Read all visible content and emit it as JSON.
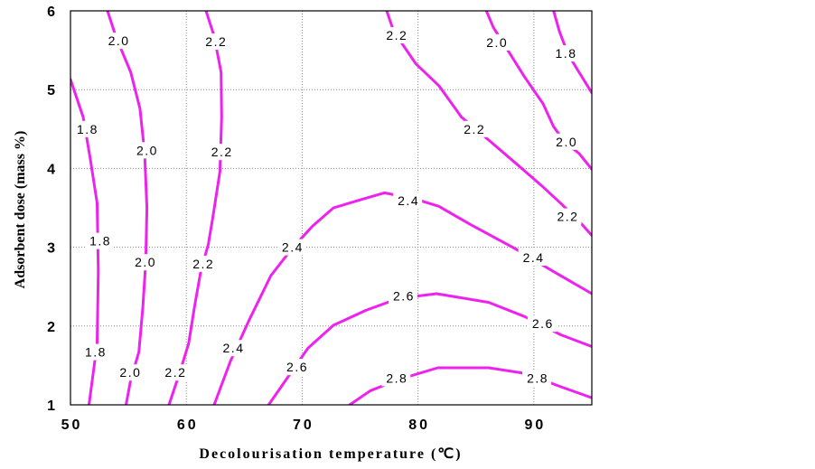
{
  "chart_data": {
    "type": "line",
    "xlabel": "Decolourisation temperature (℃)",
    "ylabel": "Adsorbent dose (mass %)",
    "xlim": [
      50,
      95
    ],
    "ylim": [
      1,
      6
    ],
    "xticks": [
      50,
      60,
      70,
      80,
      90
    ],
    "yticks": [
      1,
      2,
      3,
      4,
      5,
      6
    ],
    "grid": true,
    "line_color": "#ee22ee",
    "series": [
      {
        "level": "1.8",
        "x": [
          50.0,
          51.1,
          51.7,
          52.3,
          52.4,
          52.3,
          52.0,
          51.6
        ],
        "y": [
          5.13,
          4.65,
          4.13,
          3.56,
          2.7,
          1.78,
          1.44,
          1.0
        ],
        "labels": [
          [
            51.4,
            4.5
          ],
          [
            52.5,
            3.08
          ],
          [
            52.1,
            1.67
          ]
        ]
      },
      {
        "level": "2.0",
        "x": [
          53.2,
          53.9,
          55.2,
          56.0,
          56.4,
          56.6,
          56.5,
          56.25,
          55.9,
          55.2,
          54.8
        ],
        "y": [
          6.0,
          5.68,
          5.22,
          4.76,
          4.19,
          3.5,
          2.81,
          2.24,
          1.67,
          1.32,
          1.0
        ],
        "labels": [
          [
            54.1,
            5.62
          ],
          [
            56.55,
            4.23
          ],
          [
            56.4,
            2.81
          ],
          [
            55.1,
            1.41
          ]
        ]
      },
      {
        "level": "2.2",
        "x": [
          61.7,
          62.4,
          63.0,
          63.05,
          62.9,
          62.3,
          61.9,
          61.25,
          60.7,
          60.2,
          59.5,
          58.5
        ],
        "y": [
          6.0,
          5.68,
          5.22,
          4.65,
          3.96,
          3.39,
          3.04,
          2.7,
          2.24,
          1.78,
          1.44,
          1.0
        ],
        "labels": [
          [
            62.5,
            5.61
          ],
          [
            63.0,
            4.21
          ],
          [
            61.4,
            2.79
          ],
          [
            59.0,
            1.41
          ]
        ]
      },
      {
        "level": "2.4",
        "x": [
          62.4,
          63.8,
          65.4,
          67.3,
          69.1,
          70.9,
          72.7,
          75.2,
          77.1,
          79.8,
          81.8,
          84.5,
          88.4,
          91.6,
          95.0
        ],
        "y": [
          1.0,
          1.55,
          2.07,
          2.64,
          2.98,
          3.27,
          3.5,
          3.61,
          3.69,
          3.61,
          3.52,
          3.29,
          2.98,
          2.7,
          2.41
        ],
        "labels": [
          [
            64.0,
            1.72
          ],
          [
            69.1,
            3.0
          ],
          [
            79.1,
            3.59
          ],
          [
            89.9,
            2.87
          ]
        ]
      },
      {
        "level": "2.6",
        "x": [
          67.1,
          68.9,
          70.5,
          72.7,
          75.5,
          78.3,
          81.6,
          86.1,
          89.2,
          92.3,
          95.0
        ],
        "y": [
          1.0,
          1.38,
          1.72,
          2.01,
          2.2,
          2.35,
          2.41,
          2.3,
          2.12,
          1.89,
          1.74
        ],
        "labels": [
          [
            69.5,
            1.48
          ],
          [
            78.7,
            2.38
          ],
          [
            90.7,
            2.03
          ]
        ]
      },
      {
        "level": "2.8",
        "x": [
          74.1,
          75.9,
          78.3,
          81.7,
          86.1,
          89.2,
          92.3,
          95.0
        ],
        "y": [
          1.0,
          1.18,
          1.32,
          1.47,
          1.47,
          1.4,
          1.23,
          1.09
        ],
        "labels": [
          [
            78.1,
            1.34
          ],
          [
            90.25,
            1.34
          ]
        ]
      },
      {
        "level": "2.2",
        "x": [
          77.3,
          77.9,
          79.8,
          81.8,
          83.75,
          86.1,
          88.4,
          90.6,
          92.3,
          93.9,
          95.0
        ],
        "y": [
          6.0,
          5.74,
          5.33,
          5.05,
          4.65,
          4.36,
          4.07,
          3.79,
          3.56,
          3.33,
          3.15
        ],
        "labels": [
          [
            78.1,
            5.69
          ],
          [
            84.8,
            4.5
          ],
          [
            92.85,
            3.39
          ]
        ]
      },
      {
        "level": "2.0",
        "x": [
          85.9,
          86.5,
          87.7,
          89.2,
          90.8,
          91.7,
          92.7,
          93.9,
          95.0
        ],
        "y": [
          6.0,
          5.79,
          5.51,
          5.16,
          4.82,
          4.53,
          4.33,
          4.19,
          3.99
        ],
        "labels": [
          [
            86.75,
            5.6
          ],
          [
            92.75,
            4.34
          ]
        ]
      },
      {
        "level": "1.8",
        "x": [
          91.7,
          92.2,
          92.95,
          93.9,
          95.0
        ],
        "y": [
          6.0,
          5.74,
          5.45,
          5.22,
          4.96
        ],
        "labels": [
          [
            92.7,
            5.46
          ]
        ]
      }
    ]
  }
}
